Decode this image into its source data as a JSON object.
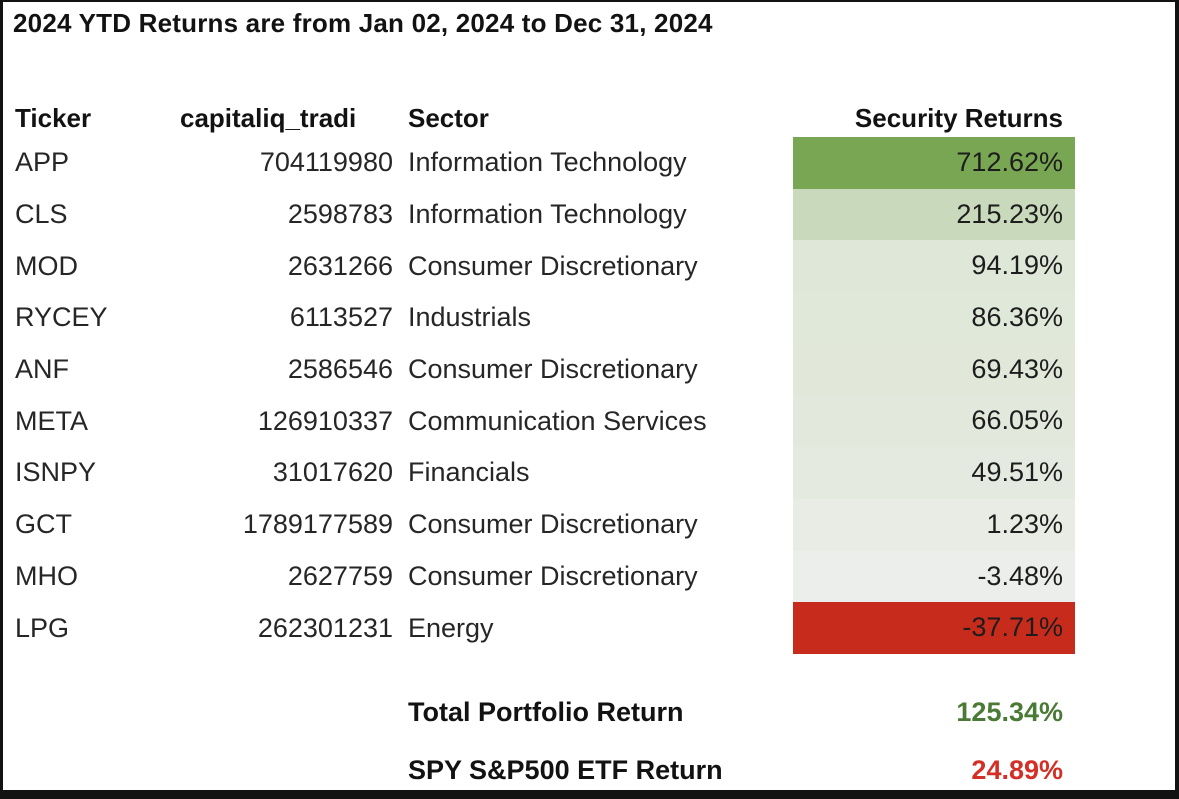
{
  "title": "2024 YTD Returns are from Jan 02, 2024 to Dec 31, 2024",
  "chart_data": {
    "type": "table",
    "title": "2024 YTD Returns are from Jan 02, 2024 to Dec 31, 2024",
    "columns": {
      "ticker": "Ticker",
      "shares": "capitaliq_tradi",
      "sector": "Sector",
      "returns": "Security Returns"
    },
    "rows": [
      {
        "ticker": "APP",
        "shares": "704119980",
        "sector": "Information Technology",
        "value": "712.62%",
        "bg": "#78a653"
      },
      {
        "ticker": "CLS",
        "shares": "2598783",
        "sector": "Information Technology",
        "value": "215.23%",
        "bg": "#c9d9bb"
      },
      {
        "ticker": "MOD",
        "shares": "2631266",
        "sector": "Consumer Discretionary",
        "value": "94.19%",
        "bg": "#dfe7d8"
      },
      {
        "ticker": "RYCEY",
        "shares": "6113527",
        "sector": "Industrials",
        "value": "86.36%",
        "bg": "#e0e8d9"
      },
      {
        "ticker": "ANF",
        "shares": "2586546",
        "sector": "Consumer Discretionary",
        "value": "69.43%",
        "bg": "#e1e8da"
      },
      {
        "ticker": "META",
        "shares": "126910337",
        "sector": "Communication Services",
        "value": "66.05%",
        "bg": "#e2e9dc"
      },
      {
        "ticker": "ISNPY",
        "shares": "31017620",
        "sector": "Financials",
        "value": "49.51%",
        "bg": "#e5eae0"
      },
      {
        "ticker": "GCT",
        "shares": "1789177589",
        "sector": "Consumer Discretionary",
        "value": "1.23%",
        "bg": "#e8ece4"
      },
      {
        "ticker": "MHO",
        "shares": "2627759",
        "sector": "Consumer Discretionary",
        "value": "-3.48%",
        "bg": "#ebeeea"
      },
      {
        "ticker": "LPG",
        "shares": "262301231",
        "sector": "Energy",
        "value": "-37.71%",
        "bg": "#c72b1c"
      }
    ],
    "summary": [
      {
        "label": "Total Portfolio Return",
        "value": "125.34%",
        "color": "#4a7a35"
      },
      {
        "label": "SPY S&P500 ETF Return",
        "value": "24.89%",
        "color": "#d32f27"
      }
    ]
  },
  "colors": {
    "frame_border": "#121212",
    "positive_return_max": "#78a653",
    "negative_return_min": "#c72b1c",
    "total_return_green": "#4a7a35",
    "spy_return_red": "#d32f27"
  }
}
